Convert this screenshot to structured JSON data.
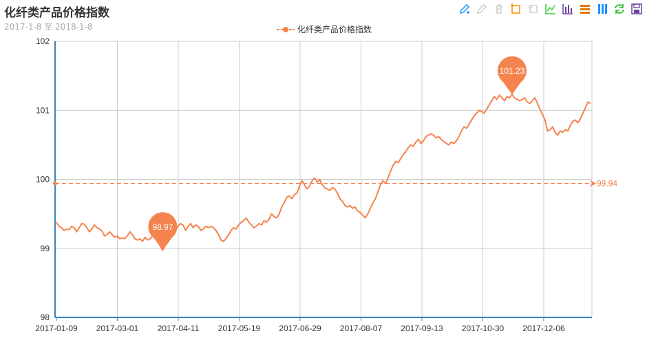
{
  "header": {
    "title": "化纤类产品价格指数",
    "subtitle": "2017-1-8 至 2018-1-8"
  },
  "toolbox": {
    "icons": [
      {
        "name": "mark-icon",
        "color": "#1e90ff"
      },
      {
        "name": "mark-undo-icon",
        "color": "#cccccc"
      },
      {
        "name": "mark-clear-icon",
        "color": "#cccccc"
      },
      {
        "name": "data-zoom-icon",
        "color": "#ff8c00"
      },
      {
        "name": "data-zoom-reset-icon",
        "color": "#cccccc"
      },
      {
        "name": "line-chart-icon",
        "color": "#32cd32"
      },
      {
        "name": "bar-chart-icon",
        "color": "#6b3fa0"
      },
      {
        "name": "stack-icon",
        "color": "#dd7700"
      },
      {
        "name": "tiled-icon",
        "color": "#1e90ff"
      },
      {
        "name": "restore-icon",
        "color": "#22bb22"
      },
      {
        "name": "save-image-icon",
        "color": "#6b3fa0"
      }
    ]
  },
  "chart_data": {
    "type": "line",
    "title": "化纤类产品价格指数",
    "subtitle": "2017-1-8 至 2018-1-8",
    "legend": [
      "化纤类产品价格指数"
    ],
    "legend_position": "top-center",
    "color": "#f5834e",
    "axis_color": "#3b83b8",
    "grid": true,
    "ylim": [
      98,
      102
    ],
    "yticks": [
      "98",
      "99",
      "100",
      "101",
      "102"
    ],
    "xticks": [
      "2017-01-09",
      "2017-03-01",
      "2017-04-11",
      "2017-05-19",
      "2017-06-29",
      "2017-08-07",
      "2017-09-13",
      "2017-10-30",
      "2017-12-06"
    ],
    "series": [
      {
        "name": "化纤类产品价格指数",
        "values": [
          99.38,
          99.32,
          99.3,
          99.26,
          99.28,
          99.27,
          99.32,
          99.3,
          99.24,
          99.3,
          99.36,
          99.35,
          99.3,
          99.24,
          99.28,
          99.34,
          99.3,
          99.28,
          99.25,
          99.18,
          99.2,
          99.24,
          99.2,
          99.16,
          99.18,
          99.14,
          99.15,
          99.14,
          99.18,
          99.24,
          99.2,
          99.14,
          99.12,
          99.14,
          99.1,
          99.16,
          99.12,
          99.14,
          99.18,
          99.2,
          99.12,
          99.04,
          98.97,
          99.05,
          99.1,
          99.16,
          99.2,
          99.26,
          99.32,
          99.36,
          99.34,
          99.26,
          99.32,
          99.36,
          99.3,
          99.34,
          99.32,
          99.26,
          99.28,
          99.32,
          99.3,
          99.32,
          99.3,
          99.26,
          99.2,
          99.12,
          99.1,
          99.14,
          99.2,
          99.26,
          99.3,
          99.28,
          99.34,
          99.38,
          99.4,
          99.44,
          99.38,
          99.34,
          99.3,
          99.32,
          99.36,
          99.34,
          99.4,
          99.38,
          99.42,
          99.5,
          99.46,
          99.44,
          99.5,
          99.6,
          99.66,
          99.74,
          99.76,
          99.72,
          99.78,
          99.8,
          99.9,
          99.98,
          99.92,
          99.86,
          99.9,
          99.98,
          100.02,
          99.96,
          100.0,
          99.92,
          99.88,
          99.86,
          99.84,
          99.88,
          99.86,
          99.8,
          99.72,
          99.68,
          99.62,
          99.6,
          99.62,
          99.58,
          99.6,
          99.54,
          99.52,
          99.48,
          99.44,
          99.5,
          99.58,
          99.66,
          99.72,
          99.82,
          99.92,
          99.98,
          99.94,
          100.02,
          100.12,
          100.2,
          100.26,
          100.24,
          100.3,
          100.36,
          100.4,
          100.46,
          100.5,
          100.48,
          100.54,
          100.58,
          100.52,
          100.56,
          100.62,
          100.64,
          100.66,
          100.64,
          100.6,
          100.62,
          100.58,
          100.55,
          100.52,
          100.5,
          100.54,
          100.52,
          100.56,
          100.62,
          100.7,
          100.76,
          100.74,
          100.8,
          100.86,
          100.92,
          100.96,
          101.0,
          100.98,
          100.96,
          101.02,
          101.08,
          101.14,
          101.2,
          101.16,
          101.22,
          101.18,
          101.14,
          101.2,
          101.18,
          101.23,
          101.18,
          101.16,
          101.14,
          101.16,
          101.18,
          101.12,
          101.1,
          101.14,
          101.18,
          101.1,
          101.02,
          100.94,
          100.86,
          100.7,
          100.72,
          100.76,
          100.68,
          100.64,
          100.7,
          100.68,
          100.72,
          100.7,
          100.78,
          100.84,
          100.86,
          100.82,
          100.88,
          100.96,
          101.04,
          101.12,
          101.1
        ]
      }
    ],
    "mark_points": [
      {
        "label": "101.23",
        "type": "max"
      },
      {
        "label": "98.97",
        "type": "min"
      }
    ],
    "mark_line": {
      "label": "99.94",
      "type": "average",
      "value": 99.94
    }
  }
}
